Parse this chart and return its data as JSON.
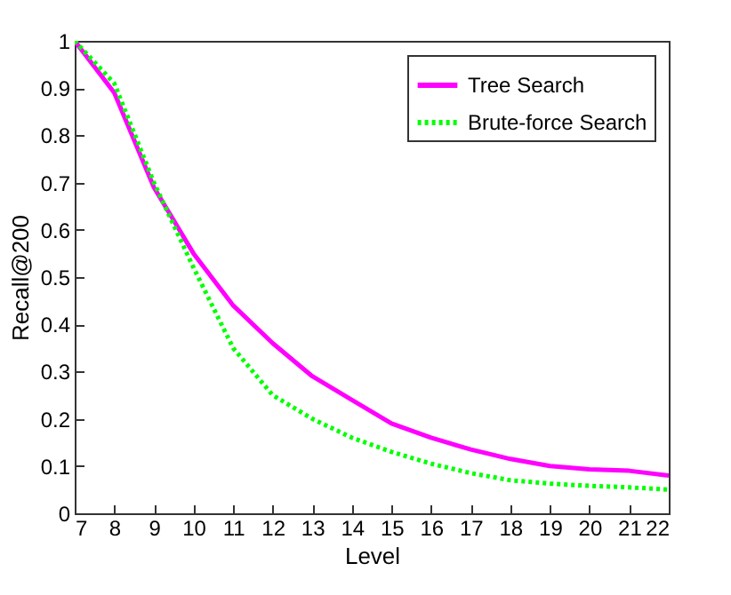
{
  "chart_data": {
    "type": "line",
    "xlabel": "Level",
    "ylabel": "Recall@200",
    "x": [
      7,
      8,
      9,
      10,
      11,
      12,
      13,
      14,
      15,
      16,
      17,
      18,
      19,
      20,
      21,
      22
    ],
    "series": [
      {
        "name": "Tree Search",
        "color": "#ff00ff",
        "line_style": "solid",
        "values": [
          1.0,
          0.89,
          0.69,
          0.55,
          0.44,
          0.36,
          0.29,
          0.24,
          0.19,
          0.16,
          0.135,
          0.115,
          0.1,
          0.093,
          0.09,
          0.08
        ]
      },
      {
        "name": "Brute-force Search",
        "color": "#00ff00",
        "line_style": "dotted",
        "values": [
          1.0,
          0.91,
          0.7,
          0.52,
          0.35,
          0.25,
          0.2,
          0.16,
          0.13,
          0.105,
          0.085,
          0.07,
          0.063,
          0.058,
          0.055,
          0.05
        ]
      }
    ],
    "xlim": [
      7,
      22
    ],
    "xticks": [
      7,
      8,
      9,
      10,
      11,
      12,
      13,
      14,
      15,
      16,
      17,
      18,
      19,
      20,
      21,
      22
    ],
    "ylim": [
      0,
      1
    ],
    "yticks": [
      0,
      0.1,
      0.2,
      0.3,
      0.4,
      0.5,
      0.6,
      0.7,
      0.8,
      0.9,
      1
    ],
    "grid": false,
    "legend": "top right"
  }
}
